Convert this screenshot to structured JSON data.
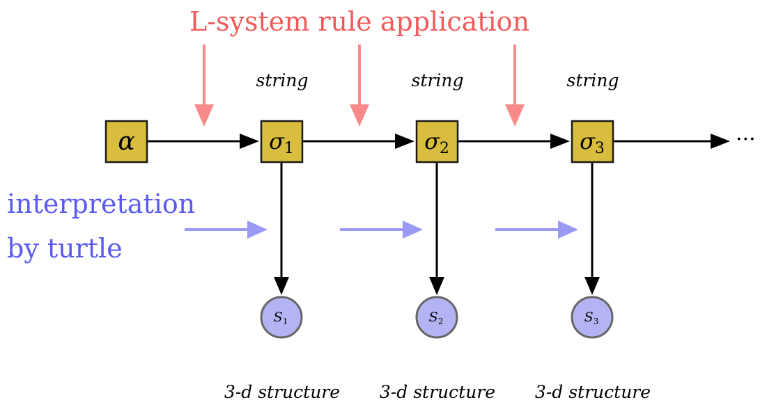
{
  "title": "L-system rule application",
  "side_label": {
    "line1": "interpretation",
    "line2": "by turtle"
  },
  "axiom": {
    "symbol": "α"
  },
  "stages": [
    {
      "symbol": "σ",
      "index": "1",
      "top_label": "string",
      "structure_symbol": "S",
      "structure_index": "1",
      "bottom_label": "3-d structure"
    },
    {
      "symbol": "σ",
      "index": "2",
      "top_label": "string",
      "structure_symbol": "S",
      "structure_index": "2",
      "bottom_label": "3-d structure"
    },
    {
      "symbol": "σ",
      "index": "3",
      "top_label": "string",
      "structure_symbol": "S",
      "structure_index": "3",
      "bottom_label": "3-d structure"
    }
  ],
  "continuation": "···",
  "colors": {
    "title": "#f05a5a",
    "rule_arrow": "#f88a8a",
    "side_label": "#5a5af0",
    "turtle_arrow": "#9a9af5",
    "box_fill": "#d8bd3e",
    "box_stroke": "#1a1a1a",
    "circle_fill": "#b4b4f4",
    "circle_stroke": "#666666",
    "main_arrow": "#000000"
  }
}
